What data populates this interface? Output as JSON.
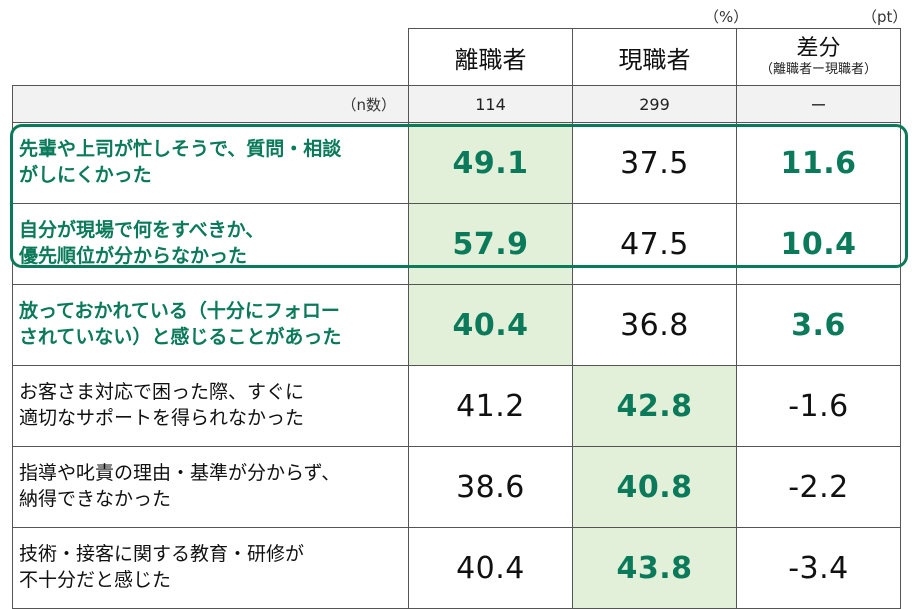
{
  "units": {
    "pct": "（%）",
    "pt": "（pt）"
  },
  "header": {
    "col1": "離職者",
    "col2": "現職者",
    "col3_main": "差分",
    "col3_sub": "（離職者ー現職者）"
  },
  "n_row": {
    "label": "（n数）",
    "v1": "114",
    "v2": "299",
    "v3": "ー"
  },
  "chart_data": {
    "type": "table",
    "columns": [
      "離職者",
      "現職者",
      "差分"
    ],
    "rows": [
      {
        "label_line1": "先輩や上司が忙しそうで、質問・相談",
        "label_line2": "がしにくかった",
        "v1": "49.1",
        "v2": "37.5",
        "diff": "11.6"
      },
      {
        "label_line1": "自分が現場で何をすべきか、",
        "label_line2": "優先順位が分からなかった",
        "v1": "57.9",
        "v2": "47.5",
        "diff": "10.4"
      },
      {
        "label_line1": "放っておかれている（十分にフォロー",
        "label_line2": "されていない）と感じることがあった",
        "v1": "40.4",
        "v2": "36.8",
        "diff": "3.6"
      },
      {
        "label_line1": "お客さま対応で困った際、すぐに",
        "label_line2": "適切なサポートを得られなかった",
        "v1": "41.2",
        "v2": "42.8",
        "diff": "-1.6"
      },
      {
        "label_line1": "指導や叱責の理由・基準が分からず、",
        "label_line2": "納得できなかった",
        "v1": "38.6",
        "v2": "40.8",
        "diff": "-2.2"
      },
      {
        "label_line1": "技術・接客に関する教育・研修が",
        "label_line2": "不十分だと感じた",
        "v1": "40.4",
        "v2": "43.8",
        "diff": "-3.4"
      }
    ]
  },
  "colors": {
    "accent_green": "#0a7a5a",
    "shade_green": "#e2efd9",
    "n_row_gray": "#f2f2f2"
  }
}
